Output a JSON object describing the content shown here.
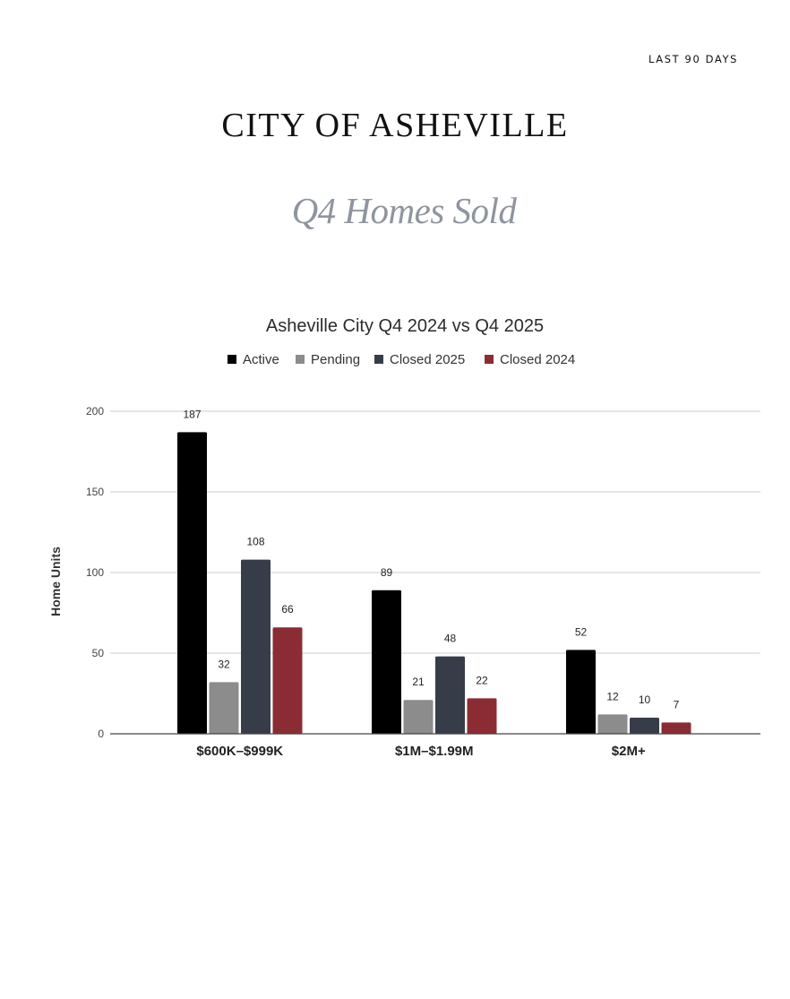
{
  "header": {
    "period": "LAST 90 DAYS",
    "city_title": "CITY OF ASHEVILLE",
    "subtitle": "Q4 Homes Sold"
  },
  "chart_data": {
    "type": "bar",
    "title": "Asheville City Q4 2024 vs Q4 2025",
    "xlabel": "",
    "ylabel": "Home Units",
    "categories": [
      "$600K–$999K",
      "$1M–$1.99M",
      "$2M+"
    ],
    "ylim": [
      0,
      200
    ],
    "yticks": [
      0,
      50,
      100,
      150,
      200
    ],
    "grid": true,
    "legend_position": "top",
    "series": [
      {
        "name": "Active",
        "color": "#000000",
        "values": [
          187,
          89,
          52
        ]
      },
      {
        "name": "Pending",
        "color": "#8c8c8c",
        "values": [
          32,
          21,
          12
        ]
      },
      {
        "name": "Closed 2025",
        "color": "#373d48",
        "values": [
          108,
          48,
          10
        ]
      },
      {
        "name": "Closed 2024",
        "color": "#8b2c34",
        "values": [
          66,
          22,
          7
        ]
      }
    ]
  }
}
